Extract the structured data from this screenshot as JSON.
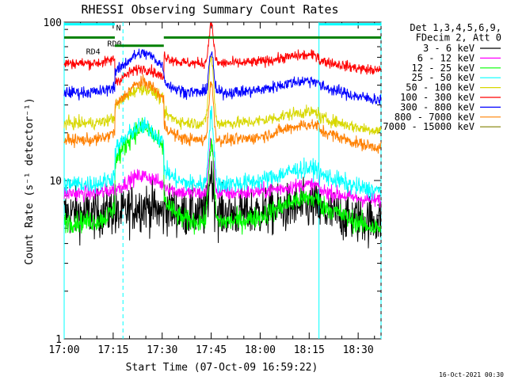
{
  "chart_data": {
    "type": "line",
    "title": "RHESSI Observing Summary Count Rates",
    "xlabel": "Start Time (07-Oct-09 16:59:22)",
    "ylabel": "Count Rate (s⁻¹ detector⁻¹)",
    "y_scale": "log",
    "ylim": [
      1,
      100
    ],
    "y_ticks": [
      "1",
      "10",
      "100"
    ],
    "x_range_min": [
      0,
      97
    ],
    "x_ticks": [
      {
        "label": "17:00",
        "min": 0
      },
      {
        "label": "17:15",
        "min": 15
      },
      {
        "label": "17:30",
        "min": 30
      },
      {
        "label": "17:45",
        "min": 45
      },
      {
        "label": "18:00",
        "min": 60
      },
      {
        "label": "18:15",
        "min": 75
      },
      {
        "label": "18:30",
        "min": 90
      }
    ],
    "legend_header": [
      "Det 1,3,4,5,6,9,",
      "FDecim 2, Att 0"
    ],
    "legend_position": "top-right",
    "series": [
      {
        "name": "3 - 6 keV",
        "color": "#000000",
        "base": 6.2,
        "noise": 0.16,
        "boost": 1.0,
        "flare": 0.5
      },
      {
        "name": "6 - 12 keV",
        "color": "#ff00ff",
        "base": 8.3,
        "noise": 0.05,
        "boost": 1.1,
        "flare": 0.7
      },
      {
        "name": "12 - 25 keV",
        "color": "#00ff00",
        "base": 5.5,
        "noise": 0.07,
        "boost": 2.2,
        "flare": 1.3
      },
      {
        "name": "25 - 50 keV",
        "color": "#00ffff",
        "base": 9.5,
        "noise": 0.06,
        "boost": 1.6,
        "flare": 1.1
      },
      {
        "name": "50 - 100 keV",
        "color": "#d8d800",
        "base": 23,
        "noise": 0.04,
        "boost": 1.3,
        "flare": 1.0
      },
      {
        "name": "100 - 300 keV",
        "color": "#ff0000",
        "base": 55,
        "noise": 0.035,
        "boost": 1.1,
        "flare": 0.5
      },
      {
        "name": "300 - 800 keV",
        "color": "#0000ff",
        "base": 36,
        "noise": 0.04,
        "boost": 1.35,
        "flare": 0.5
      },
      {
        "name": "800 - 7000 keV",
        "color": "#ff8000",
        "base": 18,
        "noise": 0.04,
        "boost": 1.6,
        "flare": 0.8
      },
      {
        "name": "7000 - 15000 keV",
        "color": "#808000",
        "base": 0,
        "noise": 0,
        "boost": 0,
        "flare": 0
      }
    ],
    "flags": [
      {
        "label": "N",
        "color": "#00ffff",
        "y_value": 97,
        "segments": [
          [
            0,
            15.5
          ],
          [
            78,
            97
          ]
        ]
      },
      {
        "label": "RD0",
        "color": "#008000",
        "y_value": 80,
        "segments": [
          [
            0,
            15.5
          ],
          [
            30.5,
            97
          ]
        ]
      },
      {
        "label": "RD4",
        "color": "#008000",
        "y_value": 71,
        "segments": [
          [
            15.5,
            30.5
          ]
        ]
      }
    ],
    "vlines": [
      {
        "min": 0,
        "dashed": false
      },
      {
        "min": 18,
        "dashed": true
      },
      {
        "min": 78,
        "dashed": false
      },
      {
        "min": 97,
        "dashed": true
      }
    ],
    "gaps_min": [
      [
        0,
        15.5
      ],
      [
        30.5,
        78
      ]
    ]
  },
  "footer": {
    "timestamp": "16-Oct-2021 00:30"
  }
}
